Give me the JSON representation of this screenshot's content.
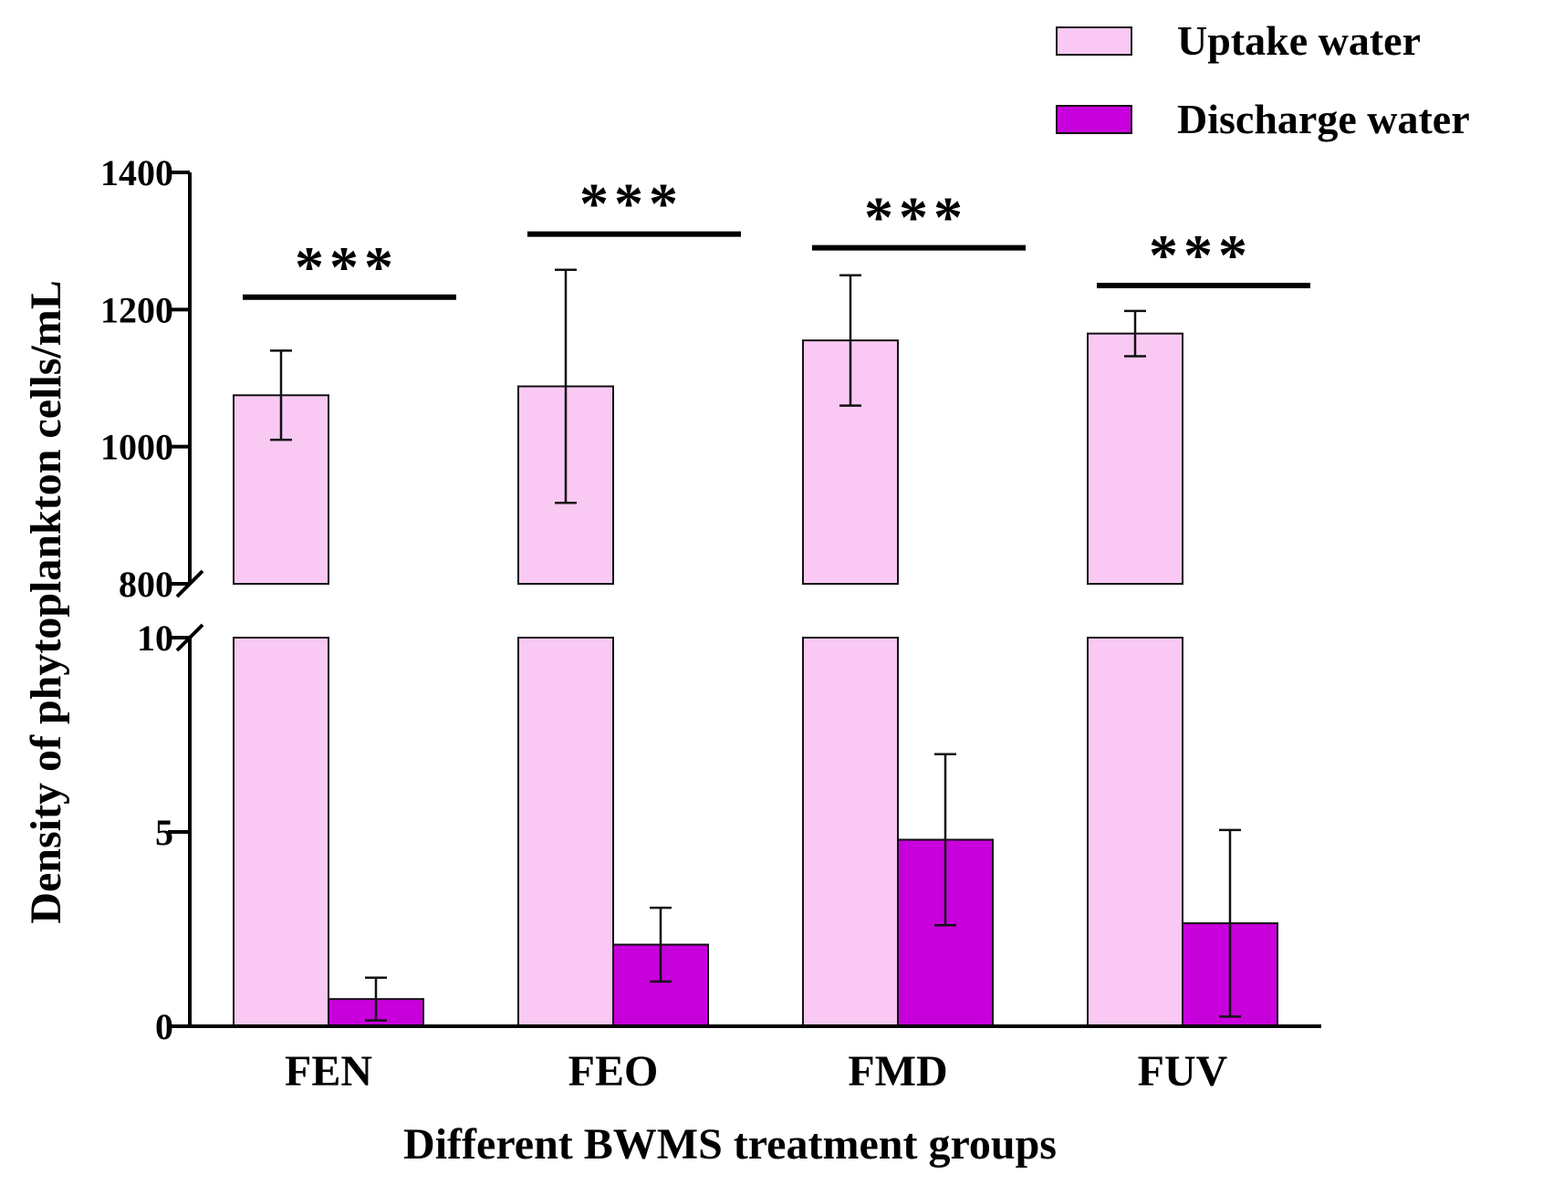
{
  "chart_data": {
    "type": "bar",
    "title": "",
    "xlabel": "Different BWMS treatment groups",
    "ylabel": "Density of phytoplankton cells/mL",
    "categories": [
      "FEN",
      "FEO",
      "FMD",
      "FUV"
    ],
    "series": [
      {
        "name": "Uptake water",
        "color": "#f9c9f4",
        "values": [
          1075,
          1088,
          1155,
          1165
        ],
        "errors": [
          65,
          170,
          95,
          33
        ]
      },
      {
        "name": "Discharge water",
        "color": "#c800dc",
        "values": [
          0.7,
          2.1,
          4.8,
          2.65
        ],
        "errors": [
          0.55,
          0.95,
          2.2,
          2.4
        ]
      }
    ],
    "y_axis": {
      "broken": true,
      "lower_segment": {
        "range": [
          0,
          10
        ],
        "ticks": [
          "0",
          "5",
          "10"
        ],
        "tick_values": [
          0,
          5,
          10
        ]
      },
      "upper_segment": {
        "range": [
          800,
          1400
        ],
        "ticks": [
          "800",
          "1000",
          "1200",
          "1400"
        ],
        "tick_values": [
          800,
          1000,
          1200,
          1400
        ]
      }
    },
    "significance": {
      "label": "***",
      "levels": [
        1218,
        1310,
        1290,
        1235
      ]
    },
    "legend": {
      "placement": "top-right",
      "entries": [
        "Uptake water",
        "Discharge water"
      ]
    }
  }
}
